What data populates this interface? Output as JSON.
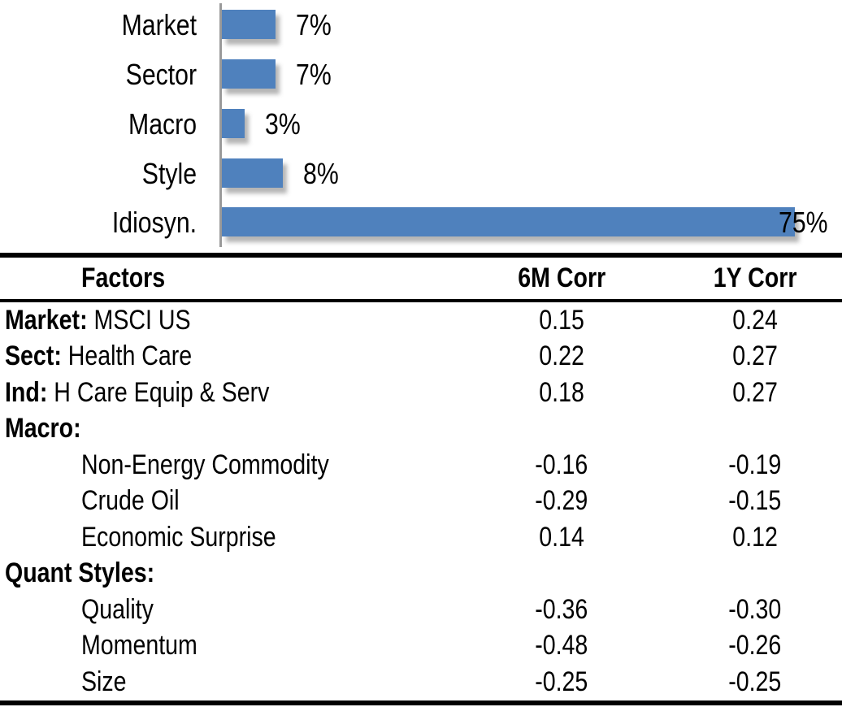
{
  "chart_data": [
    {
      "type": "bar",
      "orientation": "horizontal",
      "title": "",
      "xlabel": "",
      "ylabel": "",
      "categories": [
        "Market",
        "Sector",
        "Macro",
        "Style",
        "Idiosyn."
      ],
      "values": [
        7,
        7,
        3,
        8,
        75
      ],
      "value_labels": [
        "7%",
        "7%",
        "3%",
        "8%",
        "75%"
      ],
      "unit": "percent",
      "xlim": [
        0,
        80
      ],
      "grid": false,
      "legend": false,
      "bar_color": "#4f81bd",
      "axis_line_color": "#9a9a9a",
      "value_label_color": "#000000",
      "value_label_position": "outside-end; 75% bar label sits at inside-end overlapping bar tip"
    },
    {
      "type": "table",
      "headers": [
        "Factors",
        "6M Corr",
        "1Y Corr"
      ],
      "rows": [
        {
          "factor_bold": "Market:",
          "factor_rest": " MSCI US",
          "indent": false,
          "corr_6m": "0.15",
          "corr_1y": "0.24"
        },
        {
          "factor_bold": "Sect:",
          "factor_rest": " Health Care",
          "indent": false,
          "corr_6m": "0.22",
          "corr_1y": "0.27"
        },
        {
          "factor_bold": "Ind:",
          "factor_rest": " H Care Equip & Serv",
          "indent": false,
          "corr_6m": "0.18",
          "corr_1y": "0.27"
        },
        {
          "factor_bold": "Macro:",
          "factor_rest": "",
          "indent": false,
          "corr_6m": "",
          "corr_1y": ""
        },
        {
          "factor_bold": "",
          "factor_rest": "Non-Energy Commodity",
          "indent": true,
          "corr_6m": "-0.16",
          "corr_1y": "-0.19"
        },
        {
          "factor_bold": "",
          "factor_rest": "Crude Oil",
          "indent": true,
          "corr_6m": "-0.29",
          "corr_1y": "-0.15"
        },
        {
          "factor_bold": "",
          "factor_rest": "Economic Surprise",
          "indent": true,
          "corr_6m": "0.14",
          "corr_1y": "0.12"
        },
        {
          "factor_bold": "Quant Styles:",
          "factor_rest": "",
          "indent": false,
          "corr_6m": "",
          "corr_1y": ""
        },
        {
          "factor_bold": "",
          "factor_rest": "Quality",
          "indent": true,
          "corr_6m": "-0.36",
          "corr_1y": "-0.30"
        },
        {
          "factor_bold": "",
          "factor_rest": "Momentum",
          "indent": true,
          "corr_6m": "-0.48",
          "corr_1y": "-0.26"
        },
        {
          "factor_bold": "",
          "factor_rest": "Size",
          "indent": true,
          "corr_6m": "-0.25",
          "corr_1y": "-0.25"
        }
      ]
    }
  ]
}
